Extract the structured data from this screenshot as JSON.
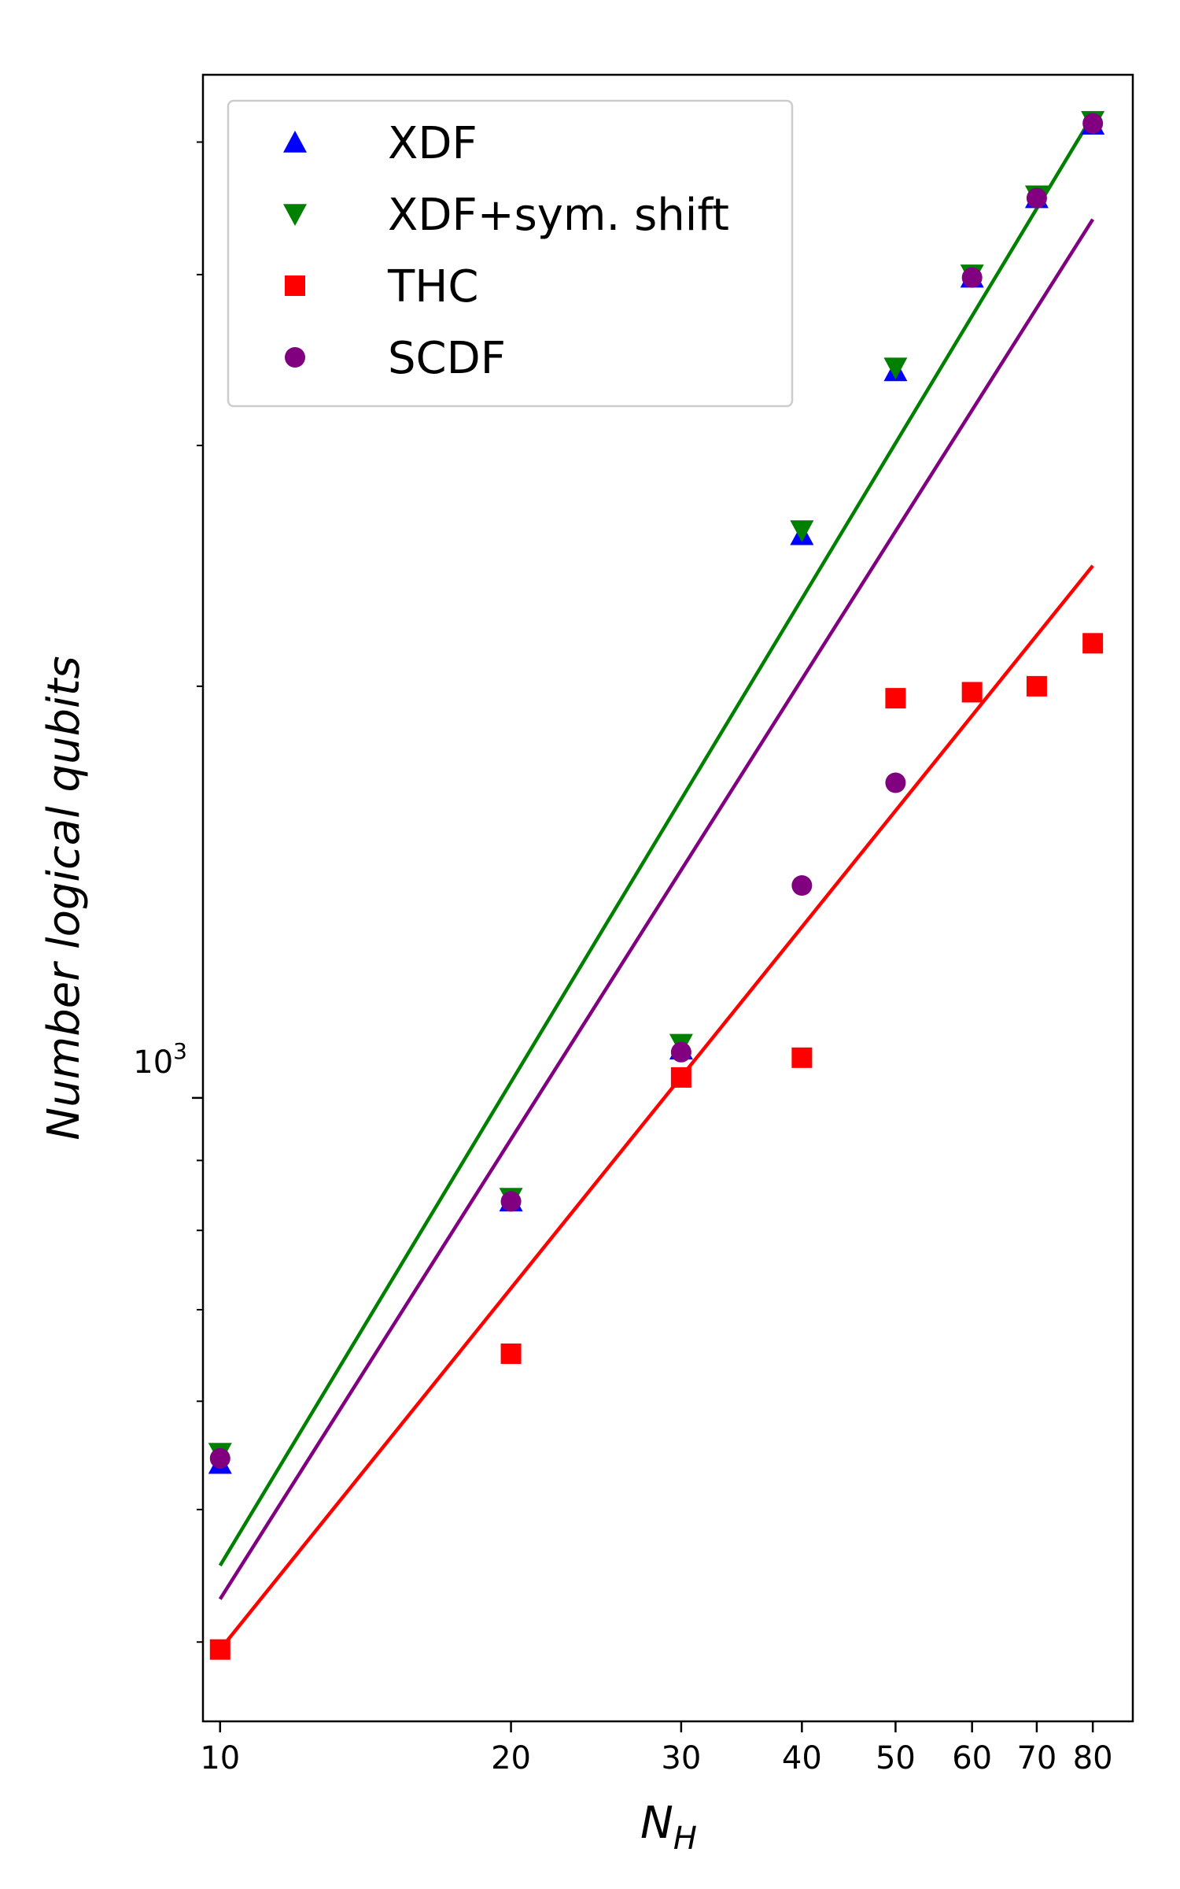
{
  "chart_data": {
    "type": "scatter",
    "xscale": "log",
    "yscale": "log",
    "xlabel": "N",
    "xlabel_sub": "H",
    "ylabel": "Number logical qubits",
    "xlim": [
      9.6,
      88
    ],
    "ylim": [
      350,
      5600
    ],
    "x_ticks": [
      {
        "value": 10,
        "label": "10"
      },
      {
        "value": 20,
        "label": "20"
      },
      {
        "value": 30,
        "label": "30"
      },
      {
        "value": 40,
        "label": "40"
      },
      {
        "value": 50,
        "label": "50"
      },
      {
        "value": 60,
        "label": "60"
      },
      {
        "value": 70,
        "label": "70"
      },
      {
        "value": 80,
        "label": "80"
      }
    ],
    "y_major_tick": {
      "value": 1000,
      "base": "10",
      "exp": "3"
    },
    "y_minor_ticks": [
      400,
      500,
      600,
      700,
      800,
      900,
      2000,
      3000,
      4000,
      5000
    ],
    "x": [
      10,
      20,
      30,
      40,
      50,
      60,
      70,
      80
    ],
    "series": [
      {
        "name": "XDF",
        "marker": "triangle-up",
        "color": "#0000ff",
        "values": [
          540,
          840,
          1085,
          2580,
          3400,
          3980,
          4550,
          5150
        ]
      },
      {
        "name": "XDF+sym. shift",
        "marker": "triangle-down",
        "color": "#008000",
        "values": [
          550,
          845,
          1095,
          2600,
          3420,
          4000,
          4570,
          5180
        ]
      },
      {
        "name": "THC",
        "marker": "square",
        "color": "#ff0000",
        "values": [
          395,
          650,
          1035,
          1070,
          1960,
          1980,
          2000,
          2150
        ]
      },
      {
        "name": "SCDF",
        "marker": "circle",
        "color": "#800080",
        "values": [
          545,
          840,
          1080,
          1430,
          1700,
          3980,
          4550,
          5160
        ]
      }
    ],
    "fit_lines": [
      {
        "name": "XDF+sym. shift fit",
        "color": "#008000",
        "x": [
          10,
          80
        ],
        "y": [
          455,
          5230
        ]
      },
      {
        "name": "SCDF fit",
        "color": "#800080",
        "x": [
          10,
          80
        ],
        "y": [
          430,
          4390
        ]
      },
      {
        "name": "THC fit",
        "color": "#ff0000",
        "x": [
          10,
          80
        ],
        "y": [
          395,
          2450
        ]
      }
    ],
    "legend": {
      "position": "top-left"
    }
  }
}
